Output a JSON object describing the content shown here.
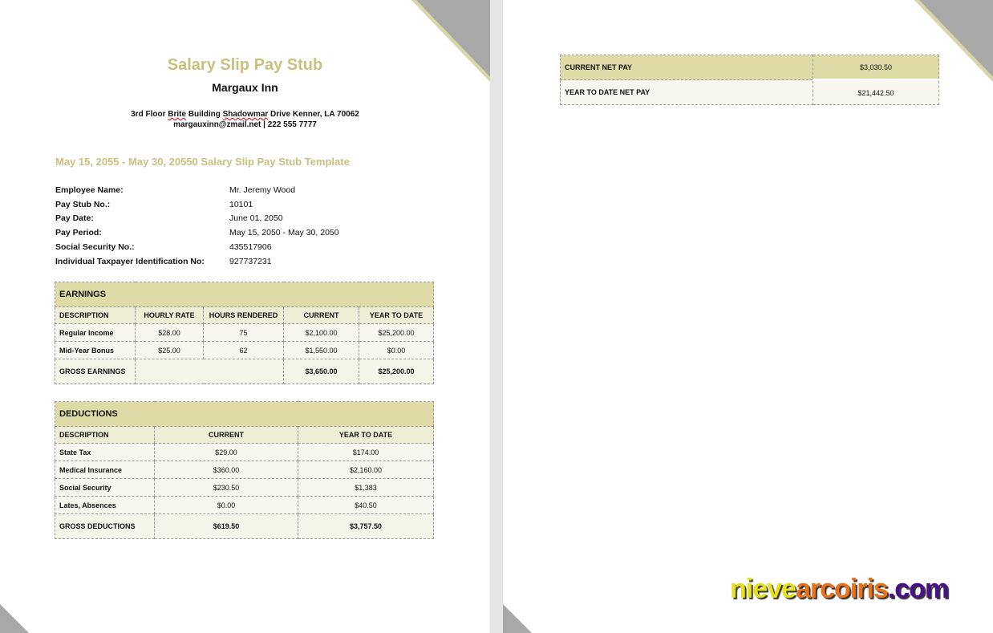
{
  "document": {
    "title": "Salary Slip Pay Stub",
    "company": "Margaux Inn",
    "address_line1_pre": "3rd Floor ",
    "address_word1": "Brite",
    "address_mid": " Building ",
    "address_word2": "Shadowmar",
    "address_post": " Drive Kenner, LA 70062",
    "contact": "margauxinn@zmail.net | 222 555 7777",
    "period_heading": "May 15, 2055 - May 30, 20550 Salary Slip Pay Stub Template",
    "employee_info": [
      {
        "label": "Employee Name:",
        "value": "Mr. Jeremy Wood"
      },
      {
        "label": "Pay Stub No.:",
        "value": "10101"
      },
      {
        "label": "Pay Date:",
        "value": "June 01, 2050"
      },
      {
        "label": "Pay Period:",
        "value": "May 15, 2050 - May 30, 2050"
      },
      {
        "label": "Social Security No.:",
        "value": "435517906"
      },
      {
        "label": "Individual Taxpayer Identification No:",
        "value": "927737231"
      }
    ]
  },
  "earnings": {
    "heading": "EARNINGS",
    "columns": [
      "DESCRIPTION",
      "HOURLY RATE",
      "HOURS RENDERED",
      "CURRENT",
      "YEAR TO DATE"
    ],
    "rows": [
      [
        "Regular Income",
        "$28.00",
        "75",
        "$2,100.00",
        "$25,200.00"
      ],
      [
        "Mid-Year Bonus",
        "$25.00",
        "62",
        "$1,550.00",
        "$0.00"
      ]
    ],
    "total": {
      "label": "GROSS EARNINGS",
      "current": "$3,650.00",
      "ytd": "$25,200.00"
    }
  },
  "deductions": {
    "heading": "DEDUCTIONS",
    "columns": [
      "DESCRIPTION",
      "CURRENT",
      "YEAR TO DATE"
    ],
    "rows": [
      [
        "State Tax",
        "$29.00",
        "$174.00"
      ],
      [
        "Medical Insurance",
        "$360.00",
        "$2,160.00"
      ],
      [
        "Social Security",
        "$230.50",
        "$1,383"
      ],
      [
        "Lates, Absences",
        "$0.00",
        "$40.50"
      ]
    ],
    "total": {
      "label": "GROSS DEDUCTIONS",
      "current": "$619.50",
      "ytd": "$3,757.50"
    }
  },
  "net_pay": [
    {
      "label": "CURRENT NET PAY",
      "value": "$3,030.50"
    },
    {
      "label": "YEAR TO DATE NET PAY",
      "value": "$21,442.50"
    }
  ],
  "watermark": {
    "part1": "nieve",
    "part2": "arcoiris",
    "part3": ".com",
    "colors": [
      "#e8e01a",
      "#e8731a",
      "#4b0f8c"
    ]
  }
}
